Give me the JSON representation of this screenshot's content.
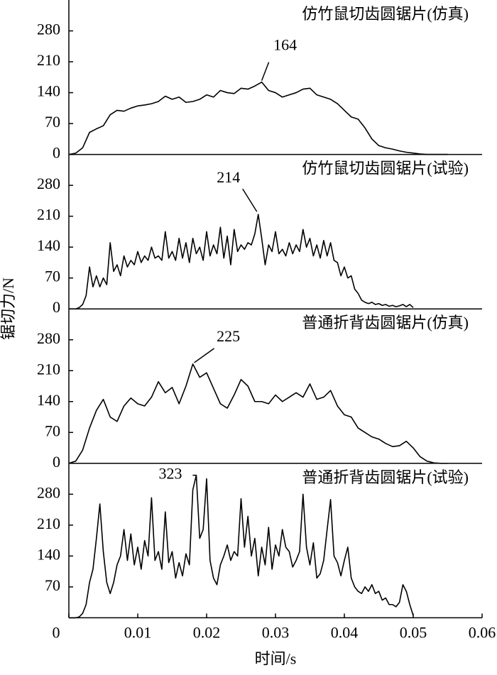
{
  "ylabel": "锯切力/N",
  "chart_data": [
    {
      "type": "line",
      "title": "仿竹鼠切齿圆锯片(仿真)",
      "color": "#000000",
      "ylim": [
        0,
        350
      ],
      "yticks": [
        0,
        70,
        140,
        210,
        280
      ],
      "annotations": [
        {
          "text": "164",
          "x": 0.028,
          "y": 164
        }
      ],
      "x": [
        0,
        0.001,
        0.002,
        0.003,
        0.004,
        0.005,
        0.006,
        0.007,
        0.008,
        0.009,
        0.01,
        0.011,
        0.012,
        0.013,
        0.014,
        0.015,
        0.016,
        0.017,
        0.018,
        0.019,
        0.02,
        0.021,
        0.022,
        0.023,
        0.024,
        0.025,
        0.026,
        0.027,
        0.028,
        0.029,
        0.03,
        0.031,
        0.032,
        0.033,
        0.034,
        0.035,
        0.036,
        0.037,
        0.038,
        0.039,
        0.04,
        0.041,
        0.042,
        0.043,
        0.044,
        0.045,
        0.046,
        0.047,
        0.048,
        0.049,
        0.05,
        0.051,
        0.052,
        0.053,
        0.054,
        0.055
      ],
      "values": [
        0,
        3,
        15,
        50,
        58,
        65,
        90,
        100,
        98,
        105,
        110,
        112,
        115,
        120,
        132,
        125,
        130,
        118,
        120,
        125,
        135,
        130,
        145,
        140,
        138,
        150,
        148,
        155,
        164,
        145,
        140,
        130,
        135,
        140,
        148,
        150,
        135,
        130,
        125,
        115,
        100,
        85,
        80,
        60,
        35,
        20,
        15,
        12,
        8,
        5,
        3,
        1,
        0,
        0,
        0,
        0
      ]
    },
    {
      "type": "line",
      "title": "仿竹鼠切齿圆锯片(试验)",
      "color": "#000000",
      "ylim": [
        0,
        350
      ],
      "yticks": [
        0,
        70,
        140,
        210,
        280
      ],
      "annotations": [
        {
          "text": "214",
          "x": 0.0275,
          "y": 214
        }
      ],
      "x": [
        0,
        0.0005,
        0.001,
        0.0015,
        0.002,
        0.0025,
        0.003,
        0.0035,
        0.004,
        0.0045,
        0.005,
        0.0055,
        0.006,
        0.0065,
        0.007,
        0.0075,
        0.008,
        0.0085,
        0.009,
        0.0095,
        0.01,
        0.0105,
        0.011,
        0.0115,
        0.012,
        0.0125,
        0.013,
        0.0135,
        0.014,
        0.0145,
        0.015,
        0.0155,
        0.016,
        0.0165,
        0.017,
        0.0175,
        0.018,
        0.0185,
        0.019,
        0.0195,
        0.02,
        0.0205,
        0.021,
        0.0215,
        0.022,
        0.0225,
        0.023,
        0.0235,
        0.024,
        0.0245,
        0.025,
        0.0255,
        0.026,
        0.0265,
        0.027,
        0.0275,
        0.028,
        0.0285,
        0.029,
        0.0295,
        0.03,
        0.0305,
        0.031,
        0.0315,
        0.032,
        0.0325,
        0.033,
        0.0335,
        0.034,
        0.0345,
        0.035,
        0.0355,
        0.036,
        0.0365,
        0.037,
        0.0375,
        0.038,
        0.0385,
        0.039,
        0.0395,
        0.04,
        0.0405,
        0.041,
        0.0415,
        0.042,
        0.0425,
        0.043,
        0.0435,
        0.044,
        0.0445,
        0.045,
        0.0455,
        0.046,
        0.0465,
        0.047,
        0.0475,
        0.048,
        0.0485,
        0.049,
        0.0495,
        0.05
      ],
      "values": [
        0,
        0,
        0,
        3,
        10,
        30,
        95,
        50,
        75,
        50,
        70,
        55,
        150,
        85,
        100,
        75,
        120,
        95,
        110,
        100,
        130,
        105,
        120,
        110,
        140,
        115,
        120,
        110,
        175,
        115,
        130,
        110,
        160,
        115,
        150,
        105,
        160,
        125,
        140,
        110,
        175,
        120,
        145,
        125,
        185,
        115,
        165,
        100,
        180,
        130,
        145,
        135,
        150,
        145,
        170,
        214,
        160,
        100,
        145,
        130,
        175,
        125,
        135,
        120,
        150,
        125,
        145,
        130,
        180,
        140,
        160,
        120,
        145,
        115,
        155,
        120,
        150,
        110,
        105,
        75,
        95,
        70,
        75,
        45,
        35,
        20,
        15,
        12,
        15,
        10,
        12,
        8,
        10,
        6,
        8,
        5,
        7,
        10,
        5,
        10,
        3
      ]
    },
    {
      "type": "line",
      "title": "普通折背齿圆锯片(仿真)",
      "color": "#000000",
      "ylim": [
        0,
        350
      ],
      "yticks": [
        0,
        70,
        140,
        210,
        280
      ],
      "annotations": [
        {
          "text": "225",
          "x": 0.018,
          "y": 225
        }
      ],
      "x": [
        0,
        0.001,
        0.002,
        0.003,
        0.004,
        0.005,
        0.006,
        0.007,
        0.008,
        0.009,
        0.01,
        0.011,
        0.012,
        0.013,
        0.014,
        0.015,
        0.016,
        0.017,
        0.018,
        0.019,
        0.02,
        0.021,
        0.022,
        0.023,
        0.024,
        0.025,
        0.026,
        0.027,
        0.028,
        0.029,
        0.03,
        0.031,
        0.032,
        0.033,
        0.034,
        0.035,
        0.036,
        0.037,
        0.038,
        0.039,
        0.04,
        0.041,
        0.042,
        0.043,
        0.044,
        0.045,
        0.046,
        0.047,
        0.048,
        0.049,
        0.05,
        0.051,
        0.052,
        0.053,
        0.054,
        0.055
      ],
      "values": [
        0,
        5,
        30,
        80,
        120,
        145,
        105,
        95,
        130,
        148,
        135,
        130,
        150,
        185,
        160,
        172,
        135,
        175,
        225,
        195,
        205,
        170,
        135,
        125,
        155,
        190,
        175,
        140,
        140,
        135,
        155,
        140,
        150,
        160,
        150,
        180,
        145,
        150,
        165,
        130,
        110,
        105,
        80,
        70,
        60,
        55,
        45,
        38,
        40,
        50,
        35,
        15,
        5,
        1,
        0,
        0
      ]
    },
    {
      "type": "line",
      "title": "普通折背齿圆锯片(试验)",
      "color": "#000000",
      "ylim": [
        0,
        350
      ],
      "yticks": [
        70,
        140,
        210,
        280
      ],
      "xlabel": "时间/s",
      "xlim": [
        0,
        0.06
      ],
      "xticks": [
        0,
        0.01,
        0.02,
        0.03,
        0.04,
        0.05,
        0.06
      ],
      "annotations": [
        {
          "text": "323",
          "x": 0.0185,
          "y": 323
        }
      ],
      "x": [
        0,
        0.0005,
        0.001,
        0.0015,
        0.002,
        0.0025,
        0.003,
        0.0035,
        0.004,
        0.0045,
        0.005,
        0.0055,
        0.006,
        0.0065,
        0.007,
        0.0075,
        0.008,
        0.0085,
        0.009,
        0.0095,
        0.01,
        0.0105,
        0.011,
        0.0115,
        0.012,
        0.0125,
        0.013,
        0.0135,
        0.014,
        0.0145,
        0.015,
        0.0155,
        0.016,
        0.0165,
        0.017,
        0.0175,
        0.018,
        0.0185,
        0.019,
        0.0195,
        0.02,
        0.0205,
        0.021,
        0.0215,
        0.022,
        0.0225,
        0.023,
        0.0235,
        0.024,
        0.0245,
        0.025,
        0.0255,
        0.026,
        0.0265,
        0.027,
        0.0275,
        0.028,
        0.0285,
        0.029,
        0.0295,
        0.03,
        0.0305,
        0.031,
        0.0315,
        0.032,
        0.0325,
        0.033,
        0.0335,
        0.034,
        0.0345,
        0.035,
        0.0355,
        0.036,
        0.0365,
        0.037,
        0.0375,
        0.038,
        0.0385,
        0.039,
        0.0395,
        0.04,
        0.0405,
        0.041,
        0.0415,
        0.042,
        0.0425,
        0.043,
        0.0435,
        0.044,
        0.0445,
        0.045,
        0.0455,
        0.046,
        0.0465,
        0.047,
        0.0475,
        0.048,
        0.0485,
        0.049,
        0.0495,
        0.05
      ],
      "values": [
        0,
        0,
        0,
        2,
        10,
        30,
        80,
        110,
        180,
        258,
        150,
        80,
        55,
        80,
        120,
        140,
        200,
        130,
        190,
        120,
        160,
        110,
        175,
        140,
        272,
        130,
        150,
        110,
        240,
        125,
        150,
        90,
        125,
        95,
        145,
        120,
        290,
        323,
        180,
        200,
        315,
        130,
        90,
        75,
        120,
        140,
        165,
        130,
        150,
        140,
        270,
        160,
        230,
        140,
        180,
        95,
        160,
        120,
        205,
        110,
        165,
        140,
        200,
        160,
        150,
        115,
        130,
        150,
        280,
        160,
        120,
        170,
        90,
        100,
        130,
        200,
        268,
        140,
        125,
        95,
        130,
        160,
        90,
        70,
        60,
        55,
        70,
        60,
        75,
        55,
        60,
        40,
        45,
        30,
        30,
        25,
        35,
        75,
        60,
        30,
        5
      ]
    }
  ]
}
